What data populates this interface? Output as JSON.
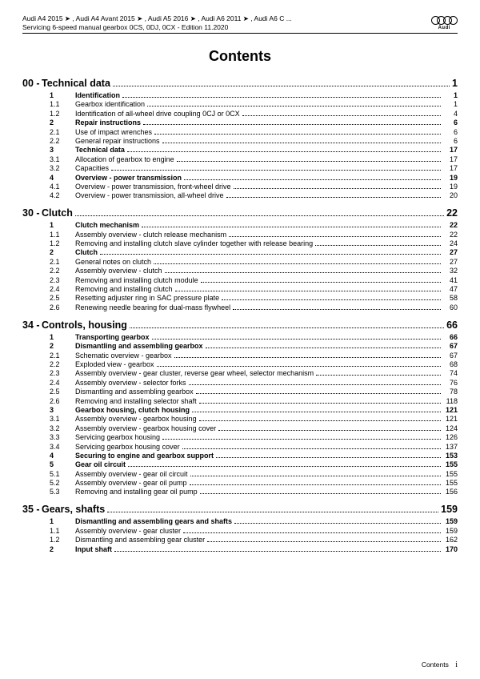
{
  "header": {
    "line1": "Audi A4 2015 ➤ , Audi A4 Avant 2015 ➤ , Audi A5 2016 ➤ , Audi A6 2011 ➤ , Audi A6 C ...",
    "line2": "Servicing 6-speed manual gearbox 0CS, 0DJ, 0CX - Edition 11.2020",
    "brand": "Audi"
  },
  "title": "Contents",
  "sections": [
    {
      "num": "00 -",
      "title": "Technical data",
      "page": "1",
      "rows": [
        {
          "n": "1",
          "l": "Identification",
          "p": "1",
          "b": true
        },
        {
          "n": "1.1",
          "l": "Gearbox identification",
          "p": "1"
        },
        {
          "n": "1.2",
          "l": "Identification of all-wheel drive coupling 0CJ or 0CX",
          "p": "4"
        },
        {
          "n": "2",
          "l": "Repair instructions",
          "p": "6",
          "b": true
        },
        {
          "n": "2.1",
          "l": "Use of impact wrenches",
          "p": "6"
        },
        {
          "n": "2.2",
          "l": "General repair instructions",
          "p": "6"
        },
        {
          "n": "3",
          "l": "Technical data",
          "p": "17",
          "b": true
        },
        {
          "n": "3.1",
          "l": "Allocation of gearbox to engine",
          "p": "17"
        },
        {
          "n": "3.2",
          "l": "Capacities",
          "p": "17"
        },
        {
          "n": "4",
          "l": "Overview - power transmission",
          "p": "19",
          "b": true
        },
        {
          "n": "4.1",
          "l": "Overview - power transmission, front-wheel drive",
          "p": "19"
        },
        {
          "n": "4.2",
          "l": "Overview - power transmission, all-wheel drive",
          "p": "20"
        }
      ]
    },
    {
      "num": "30 -",
      "title": "Clutch",
      "page": "22",
      "rows": [
        {
          "n": "1",
          "l": "Clutch mechanism",
          "p": "22",
          "b": true
        },
        {
          "n": "1.1",
          "l": "Assembly overview - clutch release mechanism",
          "p": "22"
        },
        {
          "n": "1.2",
          "l": "Removing and installing clutch slave cylinder together with release bearing",
          "p": "24"
        },
        {
          "n": "2",
          "l": "Clutch",
          "p": "27",
          "b": true
        },
        {
          "n": "2.1",
          "l": "General notes on clutch",
          "p": "27"
        },
        {
          "n": "2.2",
          "l": "Assembly overview - clutch",
          "p": "32"
        },
        {
          "n": "2.3",
          "l": "Removing and installing clutch module",
          "p": "41"
        },
        {
          "n": "2.4",
          "l": "Removing and installing clutch",
          "p": "47"
        },
        {
          "n": "2.5",
          "l": "Resetting adjuster ring in SAC pressure plate",
          "p": "58"
        },
        {
          "n": "2.6",
          "l": "Renewing needle bearing for dual-mass flywheel",
          "p": "60"
        }
      ]
    },
    {
      "num": "34 -",
      "title": "Controls, housing",
      "page": "66",
      "rows": [
        {
          "n": "1",
          "l": "Transporting gearbox",
          "p": "66",
          "b": true
        },
        {
          "n": "2",
          "l": "Dismantling and assembling gearbox",
          "p": "67",
          "b": true
        },
        {
          "n": "2.1",
          "l": "Schematic overview - gearbox",
          "p": "67"
        },
        {
          "n": "2.2",
          "l": "Exploded view - gearbox",
          "p": "68"
        },
        {
          "n": "2.3",
          "l": "Assembly overview - gear cluster, reverse gear wheel, selector mechanism",
          "p": "74"
        },
        {
          "n": "2.4",
          "l": "Assembly overview - selector forks",
          "p": "76"
        },
        {
          "n": "2.5",
          "l": "Dismantling and assembling gearbox",
          "p": "78"
        },
        {
          "n": "2.6",
          "l": "Removing and installing selector shaft",
          "p": "118"
        },
        {
          "n": "3",
          "l": "Gearbox housing, clutch housing",
          "p": "121",
          "b": true
        },
        {
          "n": "3.1",
          "l": "Assembly overview - gearbox housing",
          "p": "121"
        },
        {
          "n": "3.2",
          "l": "Assembly overview - gearbox housing cover",
          "p": "124"
        },
        {
          "n": "3.3",
          "l": "Servicing gearbox housing",
          "p": "126"
        },
        {
          "n": "3.4",
          "l": "Servicing gearbox housing cover",
          "p": "137"
        },
        {
          "n": "4",
          "l": "Securing to engine and gearbox support",
          "p": "153",
          "b": true
        },
        {
          "n": "5",
          "l": "Gear oil circuit",
          "p": "155",
          "b": true
        },
        {
          "n": "5.1",
          "l": "Assembly overview - gear oil circuit",
          "p": "155"
        },
        {
          "n": "5.2",
          "l": "Assembly overview - gear oil pump",
          "p": "155"
        },
        {
          "n": "5.3",
          "l": "Removing and installing gear oil pump",
          "p": "156"
        }
      ]
    },
    {
      "num": "35 -",
      "title": "Gears, shafts",
      "page": "159",
      "rows": [
        {
          "n": "1",
          "l": "Dismantling and assembling gears and shafts",
          "p": "159",
          "b": true
        },
        {
          "n": "1.1",
          "l": "Assembly overview - gear cluster",
          "p": "159"
        },
        {
          "n": "1.2",
          "l": "Dismantling and assembling gear cluster",
          "p": "162"
        },
        {
          "n": "2",
          "l": "Input shaft",
          "p": "170",
          "b": true
        }
      ]
    }
  ],
  "footer": {
    "label": "Contents",
    "num": "i"
  }
}
